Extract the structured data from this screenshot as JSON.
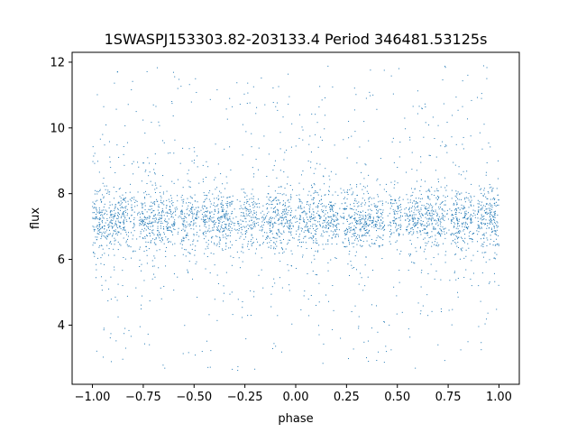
{
  "chart_data": {
    "type": "scatter",
    "title": "1SWASPJ153303.82-203133.4 Period 346481.53125s",
    "xlabel": "phase",
    "ylabel": "flux",
    "xlim": [
      -1.1,
      1.1
    ],
    "ylim": [
      2.2,
      12.3
    ],
    "x_ticks": [
      -1.0,
      -0.75,
      -0.5,
      -0.25,
      0.0,
      0.25,
      0.5,
      0.75,
      1.0
    ],
    "x_tick_labels": [
      "−1.00",
      "−0.75",
      "−0.50",
      "−0.25",
      "0.00",
      "0.25",
      "0.50",
      "0.75",
      "1.00"
    ],
    "y_ticks": [
      4,
      6,
      8,
      10,
      12
    ],
    "y_tick_labels": [
      "4",
      "6",
      "8",
      "10",
      "12"
    ],
    "grid": false,
    "legend": "none",
    "marker_color": "#1f77b4",
    "series": [
      {
        "x_range": [
          -1.0,
          1.0
        ],
        "baseline_flux": 7.2,
        "core_band": [
          6.4,
          8.0
        ],
        "max_flux": 11.9,
        "min_flux": 2.6,
        "points": [
          [
            -0.98,
            7.3
          ],
          [
            -0.95,
            9.8
          ],
          [
            -0.92,
            5.1
          ],
          [
            -0.88,
            7.0
          ],
          [
            -0.84,
            3.9
          ],
          [
            -0.8,
            8.6
          ],
          [
            -0.75,
            7.2
          ],
          [
            -0.7,
            10.7
          ],
          [
            -0.66,
            4.8
          ],
          [
            -0.62,
            7.4
          ],
          [
            -0.58,
            11.2
          ],
          [
            -0.54,
            6.1
          ],
          [
            -0.5,
            9.4
          ],
          [
            -0.46,
            3.2
          ],
          [
            -0.42,
            7.6
          ],
          [
            -0.38,
            8.9
          ],
          [
            -0.34,
            5.6
          ],
          [
            -0.3,
            7.1
          ],
          [
            -0.26,
            10.1
          ],
          [
            -0.22,
            4.3
          ],
          [
            -0.18,
            7.7
          ],
          [
            -0.14,
            6.5
          ],
          [
            -0.1,
            9.0
          ],
          [
            -0.06,
            7.2
          ],
          [
            -0.02,
            5.8
          ],
          [
            0.02,
            10.4
          ],
          [
            0.06,
            7.0
          ],
          [
            0.1,
            4.6
          ],
          [
            0.14,
            8.3
          ],
          [
            0.18,
            7.5
          ],
          [
            0.22,
            3.6
          ],
          [
            0.26,
            9.7
          ],
          [
            0.3,
            7.1
          ],
          [
            0.34,
            5.2
          ],
          [
            0.38,
            11.0
          ],
          [
            0.42,
            7.3
          ],
          [
            0.46,
            4.0
          ],
          [
            0.5,
            8.8
          ],
          [
            0.54,
            7.2
          ],
          [
            0.58,
            5.9
          ],
          [
            0.62,
            10.6
          ],
          [
            0.66,
            7.4
          ],
          [
            0.7,
            3.4
          ],
          [
            0.74,
            8.1
          ],
          [
            0.78,
            7.0
          ],
          [
            0.82,
            9.5
          ],
          [
            0.86,
            5.4
          ],
          [
            0.9,
            7.6
          ],
          [
            0.94,
            11.5
          ],
          [
            0.98,
            6.2
          ]
        ]
      }
    ]
  }
}
